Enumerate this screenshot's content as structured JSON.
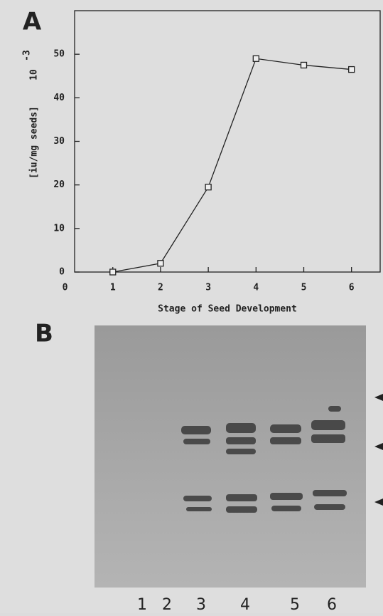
{
  "chart_data": {
    "type": "line",
    "panel_label": "A",
    "x_label": "Stage of Seed Development",
    "y_label": "[iu/mg seeds]",
    "y_label_multiplier": {
      "base": "10",
      "exponent": "-3"
    },
    "x": [
      1,
      2,
      3,
      4,
      5,
      6
    ],
    "series": [
      {
        "color": "#222222",
        "values": [
          0,
          2,
          19.5,
          49,
          47.5,
          46.5
        ]
      }
    ],
    "xlim": [
      0.2,
      6.6
    ],
    "xticks": [
      0,
      1,
      2,
      3,
      4,
      5,
      6
    ],
    "ylim": [
      0,
      60
    ],
    "yticks": [
      0,
      10,
      20,
      30,
      40,
      50
    ]
  },
  "gel": {
    "panel_label": "B",
    "lanes": [
      "1",
      "2",
      "3",
      "4",
      "5",
      "6"
    ]
  }
}
